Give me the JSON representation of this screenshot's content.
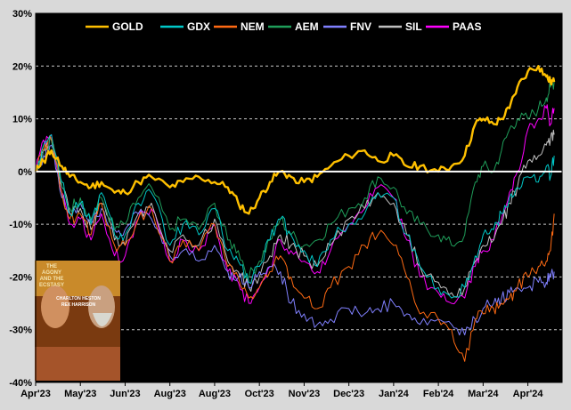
{
  "chart_data": {
    "type": "line",
    "title": "",
    "xlabel": "",
    "ylabel": "",
    "ylim": [
      -40,
      30
    ],
    "y_ticks": [
      30,
      20,
      10,
      0,
      -10,
      -20,
      -30,
      -40
    ],
    "y_tick_labels": [
      "30%",
      "20%",
      "10%",
      "0%",
      "-10%",
      "-20%",
      "-30%",
      "-40%"
    ],
    "grid": "dashed horizontal",
    "legend_position": "top",
    "background": "#000000",
    "x_tick_labels": [
      "Apr'23",
      "May'23",
      "Jun'23",
      "Aug'23",
      "Aug'23",
      "Oct'23",
      "Nov'23",
      "Dec'23",
      "Jan'24",
      "Feb'24",
      "Mar'24",
      "Apr'24"
    ],
    "x_tick_positions": [
      0,
      8.5,
      17,
      25.5,
      34,
      42.5,
      51,
      59.5,
      68,
      76.5,
      85,
      93.5
    ],
    "x_range": [
      0,
      100
    ],
    "series": [
      {
        "name": "GOLD",
        "color": "#ffc000",
        "width": 2.4,
        "x": [
          0,
          1.5,
          3,
          5,
          6.5,
          8.5,
          10.5,
          12.5,
          15,
          17,
          19.5,
          22,
          25.5,
          28,
          31,
          34,
          36.5,
          38.5,
          40.5,
          42.5,
          44.5,
          46.5,
          48.5,
          51,
          53.5,
          56,
          59.5,
          62.5,
          65,
          68,
          70.5,
          73,
          76.5,
          79,
          81.5,
          83.5,
          85,
          87,
          88.5,
          90,
          91.5,
          93.5,
          95.5,
          97,
          97.8,
          98.5
        ],
        "values": [
          0,
          2,
          4,
          1,
          -1,
          -2,
          -3,
          -2,
          -4,
          -4,
          -2,
          -1,
          -3,
          -2,
          -1,
          -2,
          -3,
          -6,
          -8,
          -5,
          -2,
          0,
          -1,
          -2,
          -1,
          1,
          3,
          4,
          2,
          3,
          1,
          1,
          0,
          1,
          3,
          9,
          10,
          9,
          10,
          12,
          16,
          19,
          20,
          18,
          17,
          17
        ]
      },
      {
        "name": "GDX",
        "color": "#00c8c8",
        "width": 1,
        "x": [
          0,
          1.5,
          3,
          5,
          6.5,
          8.5,
          10.5,
          12.5,
          15,
          17,
          19.5,
          22,
          25.5,
          28,
          31,
          34,
          36.5,
          38.5,
          40.5,
          42.5,
          44.5,
          46.5,
          48.5,
          51,
          53.5,
          56,
          59.5,
          62.5,
          65,
          68,
          70.5,
          73,
          76.5,
          79,
          81.5,
          83.5,
          85,
          87,
          88.5,
          90,
          91.5,
          93.5,
          95.5,
          97,
          97.8,
          98.5
        ],
        "values": [
          0,
          5,
          7,
          -2,
          -8,
          -6,
          -10,
          -4,
          -12,
          -12,
          -6,
          -4,
          -14,
          -10,
          -12,
          -7,
          -15,
          -17,
          -21,
          -18,
          -13,
          -9,
          -12,
          -15,
          -18,
          -13,
          -10,
          -8,
          -4,
          -5,
          -12,
          -18,
          -22,
          -24,
          -22,
          -16,
          -12,
          -11,
          -8,
          -5,
          -3,
          -1,
          -2,
          1,
          -1,
          3
        ]
      },
      {
        "name": "NEM",
        "color": "#ff6a13",
        "width": 1,
        "x": [
          0,
          1.5,
          3,
          5,
          6.5,
          8.5,
          10.5,
          12.5,
          15,
          17,
          19.5,
          22,
          25.5,
          28,
          31,
          34,
          36.5,
          38.5,
          40.5,
          42.5,
          44.5,
          46.5,
          48.5,
          51,
          53.5,
          56,
          59.5,
          62.5,
          65,
          68,
          70.5,
          73,
          76.5,
          79,
          81.5,
          83.5,
          85,
          87,
          88.5,
          90,
          91.5,
          93.5,
          95.5,
          97,
          97.8,
          98.5
        ],
        "values": [
          0,
          4,
          6,
          -4,
          -9,
          -8,
          -12,
          -6,
          -14,
          -14,
          -9,
          -7,
          -17,
          -13,
          -15,
          -10,
          -18,
          -20,
          -24,
          -22,
          -19,
          -16,
          -20,
          -24,
          -26,
          -22,
          -18,
          -14,
          -12,
          -14,
          -20,
          -27,
          -28,
          -30,
          -36,
          -28,
          -27,
          -26,
          -25,
          -24,
          -22,
          -20,
          -18,
          -17,
          -15,
          -8
        ]
      },
      {
        "name": "AEM",
        "color": "#1f9e5a",
        "width": 1,
        "x": [
          0,
          1.5,
          3,
          5,
          6.5,
          8.5,
          10.5,
          12.5,
          15,
          17,
          19.5,
          22,
          25.5,
          28,
          31,
          34,
          36.5,
          38.5,
          40.5,
          42.5,
          44.5,
          46.5,
          48.5,
          51,
          53.5,
          56,
          59.5,
          62.5,
          65,
          68,
          70.5,
          73,
          76.5,
          79,
          81.5,
          83.5,
          85,
          87,
          88.5,
          90,
          91.5,
          93.5,
          95.5,
          97,
          97.8,
          98.5
        ],
        "values": [
          0,
          4,
          6,
          -3,
          -7,
          -5,
          -9,
          -5,
          -11,
          -10,
          -5,
          -3,
          -11,
          -9,
          -11,
          -6,
          -13,
          -15,
          -20,
          -17,
          -13,
          -9,
          -12,
          -14,
          -13,
          -10,
          -7,
          -5,
          -1,
          -3,
          -8,
          -10,
          -12,
          -14,
          -12,
          -2,
          1,
          0,
          4,
          8,
          10,
          10,
          12,
          14,
          16,
          17
        ]
      },
      {
        "name": "FNV",
        "color": "#8080ff",
        "width": 1,
        "x": [
          0,
          1.5,
          3,
          5,
          6.5,
          8.5,
          10.5,
          12.5,
          15,
          17,
          19.5,
          22,
          25.5,
          28,
          31,
          34,
          36.5,
          38.5,
          40.5,
          42.5,
          44.5,
          46.5,
          48.5,
          51,
          53.5,
          56,
          59.5,
          62.5,
          65,
          68,
          70.5,
          73,
          76.5,
          79,
          81.5,
          83.5,
          85,
          87,
          88.5,
          90,
          91.5,
          93.5,
          95.5,
          97,
          97.8,
          98.5
        ],
        "values": [
          0,
          3,
          5,
          -5,
          -8,
          -6,
          -9,
          -7,
          -11,
          -11,
          -8,
          -9,
          -16,
          -15,
          -17,
          -14,
          -19,
          -20,
          -22,
          -19,
          -18,
          -19,
          -25,
          -27,
          -29,
          -28,
          -26,
          -27,
          -26,
          -25,
          -27,
          -29,
          -28,
          -29,
          -31,
          -28,
          -26,
          -25,
          -24,
          -23,
          -22,
          -22,
          -21,
          -21,
          -20,
          -19
        ]
      },
      {
        "name": "SIL",
        "color": "#c0c0c0",
        "width": 1,
        "x": [
          0,
          1.5,
          3,
          5,
          6.5,
          8.5,
          10.5,
          12.5,
          15,
          17,
          19.5,
          22,
          25.5,
          28,
          31,
          34,
          36.5,
          38.5,
          40.5,
          42.5,
          44.5,
          46.5,
          48.5,
          51,
          53.5,
          56,
          59.5,
          62.5,
          65,
          68,
          70.5,
          73,
          76.5,
          79,
          81.5,
          83.5,
          85,
          87,
          88.5,
          90,
          91.5,
          93.5,
          95.5,
          97,
          97.8,
          98.5
        ],
        "values": [
          0,
          4,
          6,
          -3,
          -8,
          -7,
          -11,
          -6,
          -13,
          -14,
          -8,
          -6,
          -15,
          -12,
          -14,
          -9,
          -17,
          -19,
          -22,
          -20,
          -16,
          -12,
          -14,
          -16,
          -18,
          -14,
          -9,
          -7,
          -4,
          -6,
          -12,
          -18,
          -21,
          -23,
          -22,
          -17,
          -14,
          -13,
          -10,
          -6,
          -3,
          2,
          3,
          5,
          6,
          7
        ]
      },
      {
        "name": "PAAS",
        "color": "#ff00ff",
        "width": 1,
        "x": [
          0,
          1.5,
          3,
          5,
          6.5,
          8.5,
          10.5,
          12.5,
          15,
          17,
          19.5,
          22,
          25.5,
          28,
          31,
          34,
          36.5,
          38.5,
          40.5,
          42.5,
          44.5,
          46.5,
          48.5,
          51,
          53.5,
          56,
          59.5,
          62.5,
          65,
          68,
          70.5,
          73,
          76.5,
          79,
          81.5,
          83.5,
          85,
          87,
          88.5,
          90,
          91.5,
          93.5,
          95.5,
          97,
          97.8,
          98.5
        ],
        "values": [
          0,
          6,
          7,
          -4,
          -10,
          -9,
          -13,
          -8,
          -16,
          -16,
          -9,
          -7,
          -17,
          -13,
          -15,
          -10,
          -19,
          -21,
          -25,
          -22,
          -18,
          -13,
          -15,
          -17,
          -19,
          -15,
          -10,
          -7,
          -3,
          -5,
          -13,
          -20,
          -23,
          -25,
          -24,
          -18,
          -15,
          -13,
          -9,
          -4,
          0,
          8,
          10,
          12,
          9,
          12
        ]
      }
    ]
  },
  "inset": {
    "title_lines": [
      "THE",
      "AGONY",
      "AND THE",
      "ECSTASY"
    ],
    "actors": [
      "CHARLTON HESTON",
      "REX HARRISON"
    ]
  }
}
